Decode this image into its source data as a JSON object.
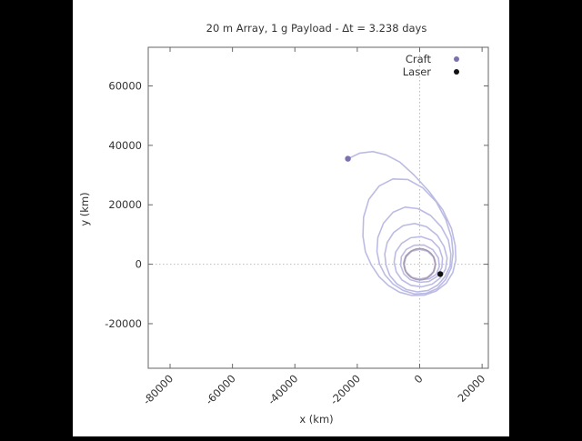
{
  "chart_data": {
    "type": "scatter",
    "title": "20 m Array, 1 g Payload - Δt = 3.238 days",
    "xlabel": "x (km)",
    "ylabel": "y (km)",
    "xlim": [
      -87000,
      22000
    ],
    "ylim": [
      -35000,
      73000
    ],
    "x_ticks": [
      -80000,
      -60000,
      -40000,
      -20000,
      0,
      20000
    ],
    "x_tick_labels": [
      "-80000",
      "-60000",
      "-40000",
      "-20000",
      "0",
      "20000"
    ],
    "y_ticks": [
      -20000,
      0,
      20000,
      40000,
      60000
    ],
    "y_tick_labels": [
      "-20000",
      "0",
      "20000",
      "40000",
      "60000"
    ],
    "zero_lines": true,
    "legend_placement": "top-right",
    "series": [
      {
        "name": "Craft",
        "color": "#7a72b0",
        "points": [
          [
            -23000,
            35500
          ]
        ]
      },
      {
        "name": "Laser",
        "color": "#111111",
        "points": [
          [
            6600,
            -3300
          ]
        ]
      }
    ],
    "trajectory": {
      "color": "#bcbbe4",
      "points": [
        [
          -23000,
          35500
        ],
        [
          -19200,
          37400
        ],
        [
          -15000,
          37900
        ],
        [
          -10800,
          36800
        ],
        [
          -6400,
          34400
        ],
        [
          -1800,
          30000
        ],
        [
          3000,
          24500
        ],
        [
          7400,
          18300
        ],
        [
          10200,
          12000
        ],
        [
          11400,
          6300
        ],
        [
          11600,
          1500
        ],
        [
          10600,
          -2800
        ],
        [
          8500,
          -6400
        ],
        [
          5300,
          -9000
        ],
        [
          1500,
          -10400
        ],
        [
          -2600,
          -10500
        ],
        [
          -6500,
          -9400
        ],
        [
          -10000,
          -7200
        ],
        [
          -13000,
          -4200
        ],
        [
          -15500,
          -200
        ],
        [
          -17400,
          4200
        ],
        [
          -18200,
          9500
        ],
        [
          -18000,
          15800
        ],
        [
          -16300,
          21800
        ],
        [
          -13000,
          26300
        ],
        [
          -8600,
          28700
        ],
        [
          -3800,
          28500
        ],
        [
          1000,
          25700
        ],
        [
          5300,
          21000
        ],
        [
          8400,
          15000
        ],
        [
          10200,
          9000
        ],
        [
          10700,
          3700
        ],
        [
          10100,
          -1200
        ],
        [
          8300,
          -5200
        ],
        [
          5600,
          -8200
        ],
        [
          2100,
          -9800
        ],
        [
          -1700,
          -10000
        ],
        [
          -5300,
          -8800
        ],
        [
          -8500,
          -6700
        ],
        [
          -11100,
          -3600
        ],
        [
          -12900,
          100
        ],
        [
          -13700,
          4300
        ],
        [
          -13400,
          9000
        ],
        [
          -11600,
          13800
        ],
        [
          -8500,
          17500
        ],
        [
          -4700,
          19200
        ],
        [
          -500,
          18700
        ],
        [
          3500,
          16400
        ],
        [
          6900,
          12600
        ],
        [
          9200,
          8100
        ],
        [
          10000,
          3400
        ],
        [
          9700,
          -700
        ],
        [
          8100,
          -4200
        ],
        [
          5800,
          -7000
        ],
        [
          2700,
          -8800
        ],
        [
          -800,
          -9300
        ],
        [
          -4300,
          -8500
        ],
        [
          -7300,
          -6600
        ],
        [
          -9600,
          -3800
        ],
        [
          -10800,
          -300
        ],
        [
          -11200,
          3400
        ],
        [
          -10400,
          7300
        ],
        [
          -8300,
          10700
        ],
        [
          -5300,
          13000
        ],
        [
          -1600,
          13700
        ],
        [
          2200,
          12600
        ],
        [
          5600,
          9800
        ],
        [
          7800,
          6000
        ],
        [
          8800,
          2100
        ],
        [
          8300,
          -1600
        ],
        [
          6600,
          -4600
        ],
        [
          4000,
          -6700
        ],
        [
          700,
          -7600
        ],
        [
          -2800,
          -7100
        ],
        [
          -5700,
          -5300
        ],
        [
          -7500,
          -2600
        ],
        [
          -8200,
          700
        ],
        [
          -7700,
          4100
        ],
        [
          -5800,
          7000
        ],
        [
          -2900,
          8900
        ],
        [
          500,
          9300
        ],
        [
          3800,
          8100
        ],
        [
          6300,
          5400
        ],
        [
          7300,
          2100
        ],
        [
          7100,
          -1100
        ],
        [
          5600,
          -4100
        ],
        [
          3000,
          -5800
        ],
        [
          0,
          -6100
        ],
        [
          -3000,
          -5200
        ],
        [
          -5100,
          -3200
        ],
        [
          -6100,
          -400
        ],
        [
          -5900,
          2500
        ],
        [
          -4300,
          5000
        ],
        [
          -1700,
          6400
        ],
        [
          1400,
          6500
        ],
        [
          4200,
          4900
        ],
        [
          6000,
          2100
        ],
        [
          6300,
          -800
        ],
        [
          5300,
          -3400
        ],
        [
          3100,
          -4900
        ],
        [
          0,
          -5300
        ],
        [
          -2800,
          -4400
        ],
        [
          -4600,
          -2300
        ],
        [
          -5200,
          300
        ],
        [
          -4500,
          2800
        ],
        [
          -2600,
          4500
        ],
        [
          0,
          5000
        ],
        [
          2600,
          4400
        ],
        [
          4500,
          2500
        ],
        [
          5100,
          0
        ],
        [
          4500,
          -2600
        ],
        [
          2600,
          -4400
        ],
        [
          0,
          -5000
        ],
        [
          -2600,
          -4400
        ],
        [
          -4500,
          -2500
        ],
        [
          -5000,
          0
        ],
        [
          -4400,
          2600
        ],
        [
          -2500,
          4500
        ],
        [
          0,
          5000
        ],
        [
          2500,
          4400
        ],
        [
          4400,
          2500
        ],
        [
          5000,
          0
        ],
        [
          4400,
          -2500
        ],
        [
          2500,
          -4400
        ],
        [
          0,
          -5000
        ],
        [
          -2500,
          -4400
        ],
        [
          -4400,
          -2500
        ],
        [
          -5000,
          0
        ],
        [
          -4400,
          2500
        ],
        [
          -2500,
          4400
        ],
        [
          0,
          5000
        ],
        [
          2500,
          4400
        ],
        [
          4400,
          2500
        ],
        [
          5000,
          0
        ]
      ]
    }
  },
  "colors": {
    "background": "#000000",
    "plot_background": "#ffffff",
    "axis": "#666666",
    "zero_line": "#bbbbbb"
  }
}
